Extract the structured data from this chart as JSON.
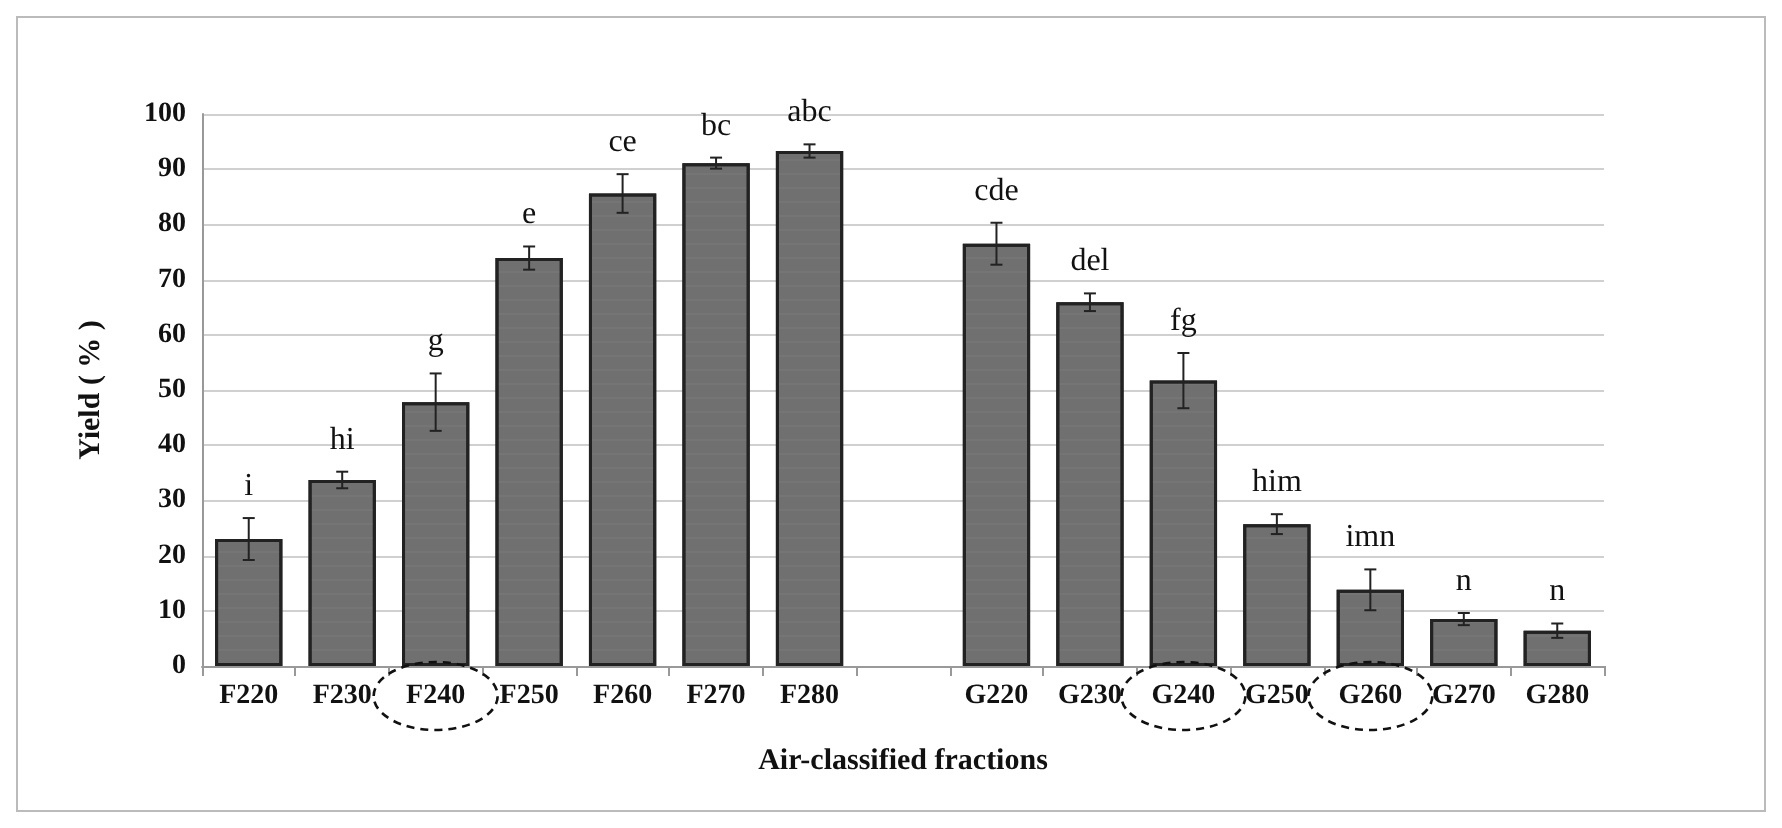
{
  "chart_data": {
    "type": "bar",
    "xlabel": "Air-classified fractions",
    "ylabel": "Yield ( % )",
    "categories": [
      "F220",
      "F230",
      "F240",
      "F250",
      "F260",
      "F270",
      "F280",
      null,
      "G220",
      "G230",
      "G240",
      "G250",
      "G260",
      "G270",
      "G280"
    ],
    "values": [
      23,
      33.7,
      47.8,
      73.9,
      85.6,
      91.1,
      93.3,
      null,
      76.5,
      65.9,
      51.7,
      25.7,
      13.8,
      8.5,
      6.4
    ],
    "errors": [
      3.8,
      1.5,
      5.2,
      2.1,
      3.5,
      1,
      1.2,
      null,
      3.8,
      1.6,
      5,
      1.8,
      3.7,
      1.1,
      1.3
    ],
    "value_labels": [
      "i",
      "hi",
      "g",
      "e",
      "ce",
      "bc",
      "abc",
      null,
      "cde",
      "del",
      "fg",
      "him",
      "imn",
      "n",
      "n"
    ],
    "color": "#707070",
    "ylim": [
      0,
      100
    ],
    "yticks": [
      0,
      10,
      20,
      30,
      40,
      50,
      60,
      70,
      80,
      90,
      100
    ],
    "grid": "y"
  }
}
